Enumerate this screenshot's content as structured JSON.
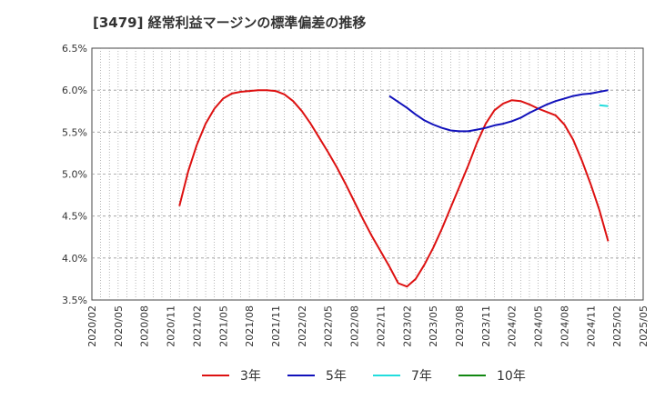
{
  "chart_data": {
    "type": "line",
    "title": "[3479]  経常利益マージンの標準偏差の推移",
    "xlabel": "",
    "ylabel": "",
    "x": [
      "2020/02",
      "2020/05",
      "2020/08",
      "2020/11",
      "2021/02",
      "2021/05",
      "2021/08",
      "2021/11",
      "2022/02",
      "2022/05",
      "2022/08",
      "2022/11",
      "2023/02",
      "2023/05",
      "2023/08",
      "2023/11",
      "2024/02",
      "2024/05",
      "2024/08",
      "2024/11",
      "2025/02",
      "2025/05"
    ],
    "ylim": [
      3.5,
      6.5
    ],
    "yticks": [
      "3.5%",
      "4.0%",
      "4.5%",
      "5.0%",
      "5.5%",
      "6.0%",
      "6.5%"
    ],
    "ytick_values": [
      3.5,
      4.0,
      4.5,
      5.0,
      5.5,
      6.0,
      6.5
    ],
    "grid": true,
    "legend_position": "bottom",
    "series": [
      {
        "name": "3年",
        "color": "#dd1111",
        "points": [
          [
            "2020/12",
            4.62
          ],
          [
            "2021/01",
            5.03
          ],
          [
            "2021/02",
            5.35
          ],
          [
            "2021/03",
            5.6
          ],
          [
            "2021/04",
            5.78
          ],
          [
            "2021/05",
            5.9
          ],
          [
            "2021/06",
            5.96
          ],
          [
            "2021/07",
            5.98
          ],
          [
            "2021/08",
            5.99
          ],
          [
            "2021/09",
            6.0
          ],
          [
            "2021/10",
            6.0
          ],
          [
            "2021/11",
            5.99
          ],
          [
            "2021/12",
            5.95
          ],
          [
            "2022/01",
            5.87
          ],
          [
            "2022/02",
            5.75
          ],
          [
            "2022/03",
            5.6
          ],
          [
            "2022/04",
            5.43
          ],
          [
            "2022/05",
            5.26
          ],
          [
            "2022/06",
            5.08
          ],
          [
            "2022/07",
            4.88
          ],
          [
            "2022/08",
            4.67
          ],
          [
            "2022/09",
            4.46
          ],
          [
            "2022/10",
            4.26
          ],
          [
            "2022/11",
            4.08
          ],
          [
            "2022/12",
            3.9
          ],
          [
            "2023/01",
            3.7
          ],
          [
            "2023/02",
            3.66
          ],
          [
            "2023/03",
            3.75
          ],
          [
            "2023/04",
            3.92
          ],
          [
            "2023/05",
            4.12
          ],
          [
            "2023/06",
            4.35
          ],
          [
            "2023/07",
            4.6
          ],
          [
            "2023/08",
            4.85
          ],
          [
            "2023/09",
            5.1
          ],
          [
            "2023/10",
            5.37
          ],
          [
            "2023/11",
            5.6
          ],
          [
            "2023/12",
            5.76
          ],
          [
            "2024/01",
            5.84
          ],
          [
            "2024/02",
            5.88
          ],
          [
            "2024/03",
            5.87
          ],
          [
            "2024/04",
            5.83
          ],
          [
            "2024/05",
            5.78
          ],
          [
            "2024/06",
            5.74
          ],
          [
            "2024/07",
            5.7
          ],
          [
            "2024/08",
            5.59
          ],
          [
            "2024/09",
            5.41
          ],
          [
            "2024/10",
            5.16
          ],
          [
            "2024/11",
            4.88
          ],
          [
            "2024/12",
            4.57
          ],
          [
            "2025/01",
            4.2
          ]
        ]
      },
      {
        "name": "5年",
        "color": "#1111bb",
        "points": [
          [
            "2022/12",
            5.93
          ],
          [
            "2023/01",
            5.86
          ],
          [
            "2023/02",
            5.79
          ],
          [
            "2023/03",
            5.71
          ],
          [
            "2023/04",
            5.64
          ],
          [
            "2023/05",
            5.59
          ],
          [
            "2023/06",
            5.55
          ],
          [
            "2023/07",
            5.52
          ],
          [
            "2023/08",
            5.51
          ],
          [
            "2023/09",
            5.51
          ],
          [
            "2023/10",
            5.53
          ],
          [
            "2023/11",
            5.55
          ],
          [
            "2023/12",
            5.58
          ],
          [
            "2024/01",
            5.6
          ],
          [
            "2024/02",
            5.63
          ],
          [
            "2024/03",
            5.67
          ],
          [
            "2024/04",
            5.73
          ],
          [
            "2024/05",
            5.78
          ],
          [
            "2024/06",
            5.83
          ],
          [
            "2024/07",
            5.87
          ],
          [
            "2024/08",
            5.9
          ],
          [
            "2024/09",
            5.93
          ],
          [
            "2024/10",
            5.95
          ],
          [
            "2024/11",
            5.96
          ],
          [
            "2024/12",
            5.98
          ],
          [
            "2025/01",
            6.0
          ]
        ]
      },
      {
        "name": "7年",
        "color": "#22dddd",
        "points": [
          [
            "2024/12",
            5.82
          ],
          [
            "2025/01",
            5.81
          ]
        ]
      },
      {
        "name": "10年",
        "color": "#118811",
        "points": []
      }
    ]
  }
}
